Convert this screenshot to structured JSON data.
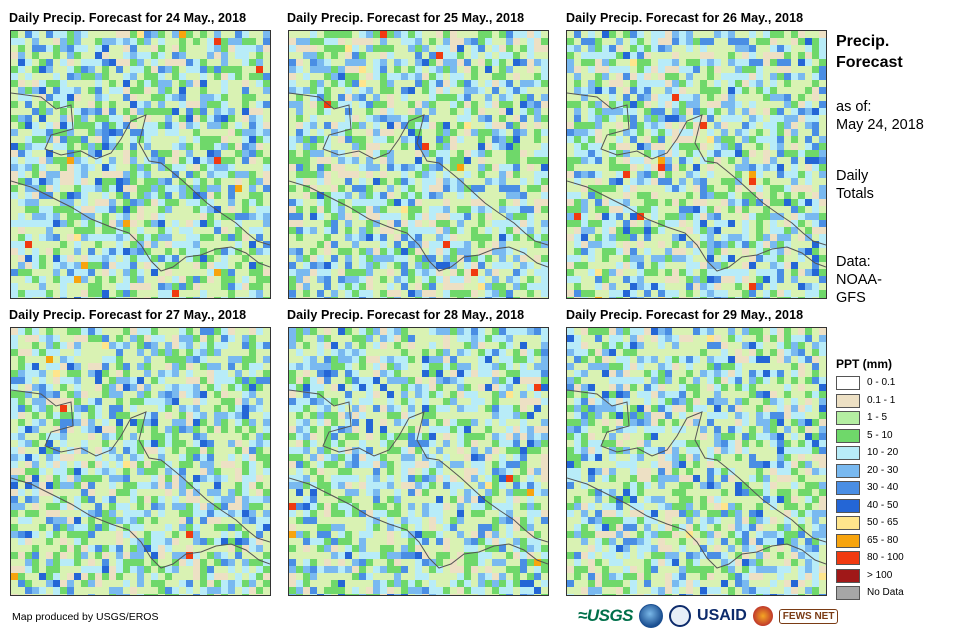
{
  "panels": [
    {
      "title": "Daily  Precip.  Forecast for 24 May., 2018"
    },
    {
      "title": "Daily  Precip.  Forecast for 25 May., 2018"
    },
    {
      "title": "Daily  Precip.  Forecast for 26 May., 2018"
    },
    {
      "title": "Daily  Precip.  Forecast for 27 May., 2018"
    },
    {
      "title": "Daily  Precip.  Forecast for 28 May., 2018"
    },
    {
      "title": "Daily  Precip.  Forecast for 29 May., 2018"
    }
  ],
  "sidebar": {
    "heading_line1": "Precip.",
    "heading_line2": "Forecast",
    "asof_label": "as of:",
    "asof_date": "May 24, 2018",
    "totals_line1": "Daily",
    "totals_line2": "Totals",
    "data_label": "Data:",
    "data_line1": "NOAA-",
    "data_line2": "GFS"
  },
  "legend": {
    "title": "PPT (mm)",
    "items": [
      {
        "label": "0 - 0.1",
        "color": "#ffffff"
      },
      {
        "label": "0.1 - 1",
        "color": "#ede0c4"
      },
      {
        "label": "1 - 5",
        "color": "#b4eea2"
      },
      {
        "label": "5 - 10",
        "color": "#6fd86a"
      },
      {
        "label": "10 - 20",
        "color": "#b8ecf8"
      },
      {
        "label": "20 - 30",
        "color": "#79b9f0"
      },
      {
        "label": "30 - 40",
        "color": "#4a8ee4"
      },
      {
        "label": "40 - 50",
        "color": "#2466d6"
      },
      {
        "label": "50 - 65",
        "color": "#ffe58c"
      },
      {
        "label": "65 - 80",
        "color": "#f7a40e"
      },
      {
        "label": "80 - 100",
        "color": "#f03a10"
      },
      {
        "label": "> 100",
        "color": "#a01818"
      },
      {
        "label": "No Data",
        "color": "#a6a6a6"
      }
    ]
  },
  "footer": {
    "credit": "Map produced by USGS/EROS"
  },
  "logos": {
    "usgs": "≈USGS",
    "usaid": "USAID",
    "fews": "FEWS NET"
  }
}
